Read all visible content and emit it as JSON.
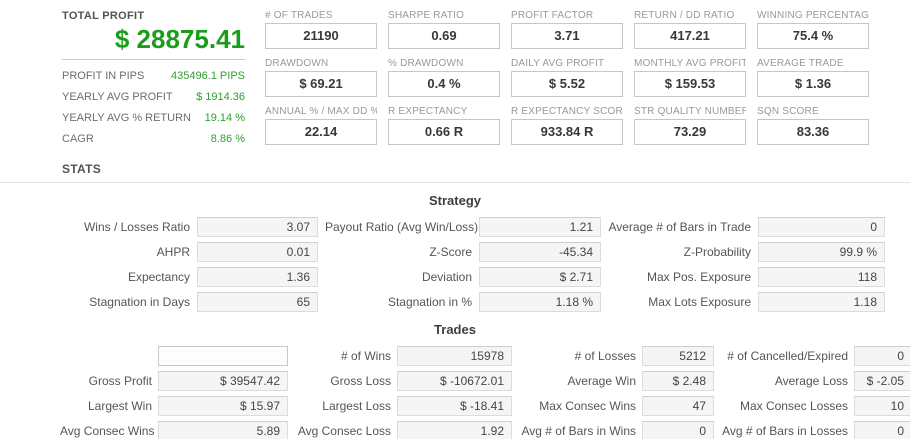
{
  "colors": {
    "accent_green_big": "#1a9e1a",
    "accent_green_values": "#2f9e2f",
    "heading_gray": "#50564f",
    "metric_label_gray": "#97999d",
    "cell_bg": "#f5f5f5"
  },
  "summary": {
    "title": "TOTAL PROFIT",
    "total_profit": "$ 28875.41",
    "rows": [
      {
        "label": "PROFIT IN PIPS",
        "value": "435496.1 PIPS"
      },
      {
        "label": "YEARLY AVG PROFIT",
        "value": "$ 1914.36"
      },
      {
        "label": "YEARLY AVG % RETURN",
        "value": "19.14 %"
      },
      {
        "label": "CAGR",
        "value": "8.86 %"
      }
    ],
    "stats_heading": "STATS"
  },
  "metrics": [
    {
      "label": "# OF TRADES",
      "value": "21190"
    },
    {
      "label": "SHARPE RATIO",
      "value": "0.69"
    },
    {
      "label": "PROFIT FACTOR",
      "value": "3.71"
    },
    {
      "label": "RETURN / DD RATIO",
      "value": "417.21"
    },
    {
      "label": "WINNING PERCENTAGE",
      "value": "75.4 %"
    },
    {
      "label": "DRAWDOWN",
      "value": "$ 69.21"
    },
    {
      "label": "% DRAWDOWN",
      "value": "0.4 %"
    },
    {
      "label": "DAILY AVG PROFIT",
      "value": "$ 5.52"
    },
    {
      "label": "MONTHLY AVG PROFIT",
      "value": "$ 159.53"
    },
    {
      "label": "AVERAGE TRADE",
      "value": "$ 1.36"
    },
    {
      "label": "ANNUAL % / MAX DD %",
      "value": "22.14"
    },
    {
      "label": "R EXPECTANCY",
      "value": "0.66 R"
    },
    {
      "label": "R EXPECTANCY SCORE",
      "value": "933.84 R"
    },
    {
      "label": "STR QUALITY NUMBER",
      "value": "73.29"
    },
    {
      "label": "SQN SCORE",
      "value": "83.36"
    }
  ],
  "strategy": {
    "heading": "Strategy",
    "cells": [
      {
        "label": "Wins / Losses Ratio",
        "value": "3.07"
      },
      {
        "label": "Payout Ratio (Avg Win/Loss)",
        "value": "1.21"
      },
      {
        "label": "Average # of Bars in Trade",
        "value": "0"
      },
      {
        "label": "AHPR",
        "value": "0.01"
      },
      {
        "label": "Z-Score",
        "value": "-45.34"
      },
      {
        "label": "Z-Probability",
        "value": "99.9 %"
      },
      {
        "label": "Expectancy",
        "value": "1.36"
      },
      {
        "label": "Deviation",
        "value": "$ 2.71"
      },
      {
        "label": "Max Pos. Exposure",
        "value": "118"
      },
      {
        "label": "Stagnation in Days",
        "value": "65"
      },
      {
        "label": "Stagnation in %",
        "value": "1.18 %"
      },
      {
        "label": "Max Lots Exposure",
        "value": "1.18"
      }
    ]
  },
  "trades": {
    "heading": "Trades",
    "cells": [
      {
        "label": "",
        "value": ""
      },
      {
        "label": "# of Wins",
        "value": "15978"
      },
      {
        "label": "# of Losses",
        "value": "5212"
      },
      {
        "label": "# of Cancelled/Expired",
        "value": "0"
      },
      {
        "label": "Gross Profit",
        "value": "$ 39547.42"
      },
      {
        "label": "Gross Loss",
        "value": "$ -10672.01"
      },
      {
        "label": "Average Win",
        "value": "$ 2.48"
      },
      {
        "label": "Average Loss",
        "value": "$ -2.05"
      },
      {
        "label": "Largest Win",
        "value": "$ 15.97"
      },
      {
        "label": "Largest Loss",
        "value": "$ -18.41"
      },
      {
        "label": "Max Consec Wins",
        "value": "47"
      },
      {
        "label": "Max Consec Losses",
        "value": "10"
      },
      {
        "label": "Avg Consec Wins",
        "value": "5.89"
      },
      {
        "label": "Avg Consec Loss",
        "value": "1.92"
      },
      {
        "label": "Avg # of Bars in Wins",
        "value": "0"
      },
      {
        "label": "Avg # of Bars in Losses",
        "value": "0"
      }
    ]
  }
}
